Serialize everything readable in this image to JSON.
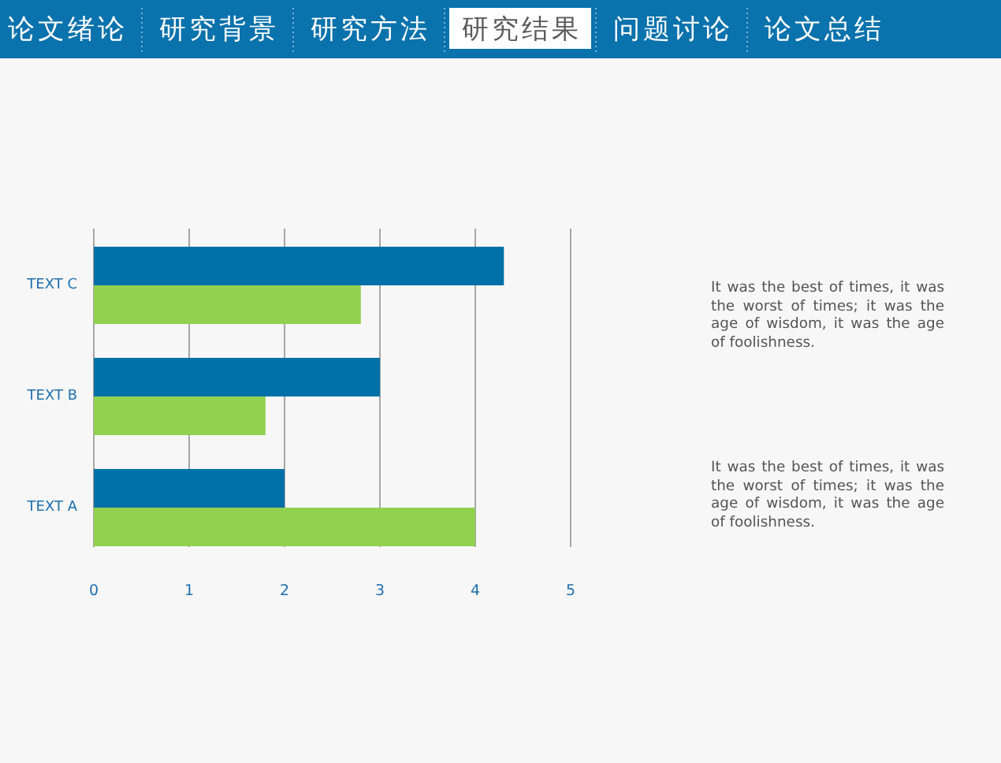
{
  "chart_data": {
    "type": "bar",
    "orientation": "horizontal",
    "categories": [
      "TEXT C",
      "TEXT B",
      "TEXT A"
    ],
    "series": [
      {
        "color": "#0070a8",
        "values": [
          4.3,
          3,
          2
        ]
      },
      {
        "color": "#92d050",
        "values": [
          2.8,
          1.8,
          4
        ]
      }
    ],
    "xlim": [
      0,
      5
    ],
    "xticks": [
      0,
      1,
      2,
      3,
      4,
      5
    ],
    "grid": "x",
    "annotations": [
      "论文绪论",
      "研究背景",
      "研究方法",
      "研究结果",
      "问题讨论",
      "论文总结",
      "It was the best of times, it was the worst of times; it was the age of wisdom, it was the age of foolishness.",
      "It was the best of times, it was the worst of times; it was the age of wisdom, it was the age of foolishness."
    ]
  }
}
